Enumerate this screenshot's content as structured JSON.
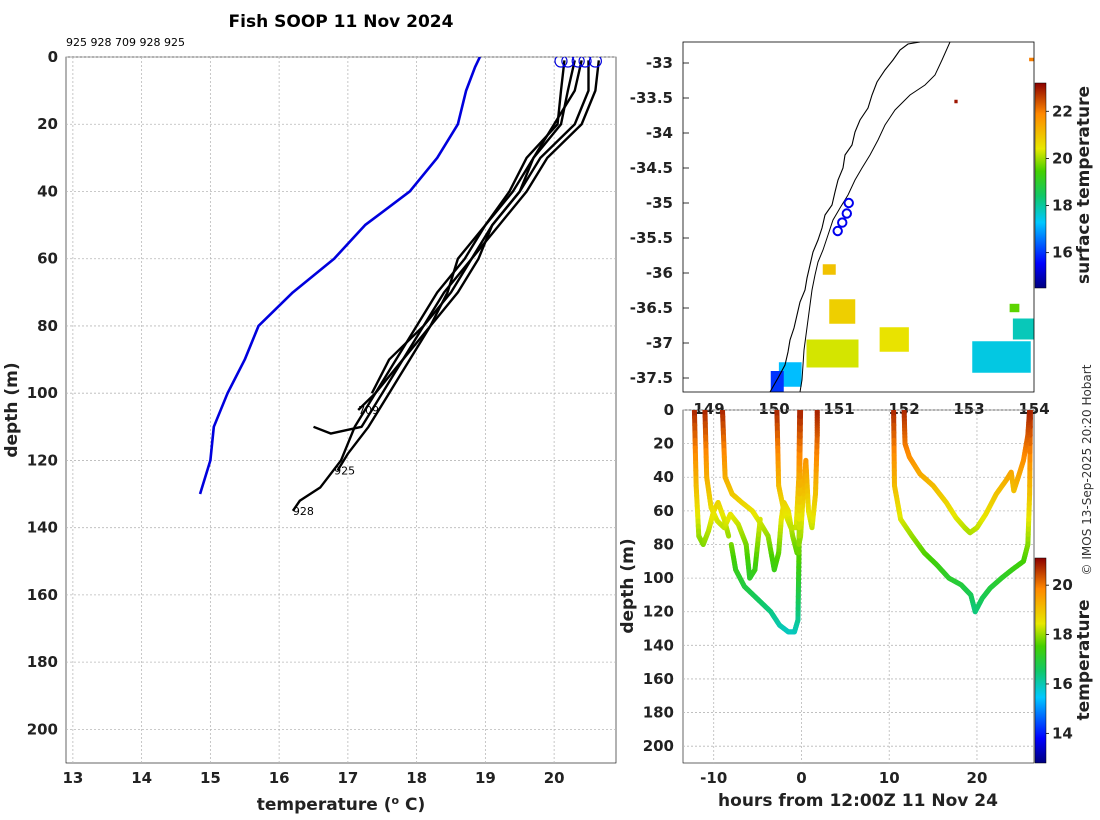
{
  "figure": {
    "credit": "© IMOS 13-Sep-2025 20:20 Hobart"
  },
  "chart_data": [
    {
      "type": "line",
      "panel": "profiles",
      "title": "Fish SOOP 11 Nov 2024",
      "header_ids": "925 928 709 928 925",
      "xlabel_main": "temperature (",
      "xlabel_sup": "o",
      "xlabel_tail": " C)",
      "ylabel": "depth (m)",
      "xlim": [
        12.9,
        20.9
      ],
      "ylim": [
        210,
        0
      ],
      "xticks": [
        13,
        14,
        15,
        16,
        17,
        18,
        19,
        20
      ],
      "yticks": [
        0,
        20,
        40,
        60,
        80,
        100,
        120,
        140,
        160,
        180,
        200
      ],
      "grid": true,
      "series": [
        {
          "name": "climatology",
          "color": "#0000dd",
          "points": [
            [
              18.92,
              0
            ],
            [
              18.85,
              3
            ],
            [
              18.72,
              10
            ],
            [
              18.6,
              20
            ],
            [
              18.3,
              30
            ],
            [
              17.9,
              40
            ],
            [
              17.25,
              50
            ],
            [
              16.8,
              60
            ],
            [
              16.2,
              70
            ],
            [
              15.7,
              80
            ],
            [
              15.5,
              90
            ],
            [
              15.25,
              100
            ],
            [
              15.05,
              110
            ],
            [
              15.0,
              120
            ],
            [
              14.85,
              130
            ]
          ]
        }
      ],
      "casts": [
        {
          "id": "925",
          "color": "#000000",
          "label_at": [
            16.8,
            123
          ],
          "points": [
            [
              20.15,
              1
            ],
            [
              20.1,
              10
            ],
            [
              20.05,
              20
            ],
            [
              19.6,
              30
            ],
            [
              19.35,
              40
            ],
            [
              19.0,
              50
            ],
            [
              18.6,
              60
            ],
            [
              18.45,
              70
            ],
            [
              18.2,
              80
            ],
            [
              17.9,
              90
            ],
            [
              17.6,
              100
            ],
            [
              17.3,
              110
            ],
            [
              17.0,
              118
            ],
            [
              16.85,
              123
            ]
          ]
        },
        {
          "id": "928",
          "color": "#000000",
          "label_at": [
            16.2,
            135
          ],
          "points": [
            [
              20.4,
              1
            ],
            [
              20.3,
              10
            ],
            [
              20.0,
              20
            ],
            [
              19.7,
              30
            ],
            [
              19.4,
              40
            ],
            [
              19.0,
              50
            ],
            [
              18.7,
              60
            ],
            [
              18.3,
              70
            ],
            [
              18.0,
              80
            ],
            [
              17.7,
              90
            ],
            [
              17.4,
              100
            ],
            [
              17.1,
              110
            ],
            [
              16.9,
              120
            ],
            [
              16.6,
              128
            ],
            [
              16.3,
              132
            ],
            [
              16.2,
              135
            ]
          ]
        },
        {
          "id": "709",
          "color": "#000000",
          "label_at": [
            17.15,
            105
          ],
          "points": [
            [
              20.5,
              1
            ],
            [
              20.5,
              10
            ],
            [
              20.3,
              20
            ],
            [
              19.8,
              30
            ],
            [
              19.5,
              40
            ],
            [
              19.1,
              50
            ],
            [
              18.9,
              60
            ],
            [
              18.6,
              70
            ],
            [
              18.2,
              80
            ],
            [
              17.8,
              90
            ],
            [
              17.4,
              100
            ],
            [
              17.15,
              105
            ]
          ]
        },
        {
          "id": "928",
          "color": "#000000",
          "label_at": null,
          "points": [
            [
              20.65,
              1
            ],
            [
              20.6,
              10
            ],
            [
              20.4,
              20
            ],
            [
              19.9,
              30
            ],
            [
              19.6,
              40
            ],
            [
              19.2,
              50
            ],
            [
              18.8,
              60
            ],
            [
              18.4,
              70
            ],
            [
              18.1,
              80
            ],
            [
              17.8,
              90
            ],
            [
              17.5,
              100
            ],
            [
              17.2,
              110
            ],
            [
              16.75,
              112
            ],
            [
              16.5,
              110
            ]
          ]
        },
        {
          "id": "925",
          "color": "#000000",
          "label_at": null,
          "points": [
            [
              20.3,
              1
            ],
            [
              20.2,
              10
            ],
            [
              20.1,
              20
            ],
            [
              19.7,
              30
            ],
            [
              19.5,
              40
            ],
            [
              19.1,
              50
            ],
            [
              18.8,
              60
            ],
            [
              18.5,
              70
            ],
            [
              18.1,
              80
            ],
            [
              17.6,
              90
            ],
            [
              17.35,
              100
            ]
          ]
        }
      ],
      "surface_markers": [
        20.1,
        20.2,
        20.35,
        20.45,
        20.6
      ]
    },
    {
      "type": "heatmap",
      "panel": "map",
      "ylim": [
        -37.7,
        -32.7
      ],
      "yticks": [
        "-33",
        "-33.5",
        "-34",
        "-34.5",
        "-35",
        "-35.5",
        "-36",
        "-36.5",
        "-37",
        "-37.5"
      ],
      "ytick_values": [
        -33,
        -33.5,
        -34,
        -34.5,
        -35,
        -35.5,
        -36,
        -36.5,
        -37,
        -37.5
      ],
      "xticks": [
        "149",
        "150",
        "151",
        "152",
        "153",
        "154"
      ],
      "xtick_values": [
        149,
        150,
        151,
        152,
        153,
        154
      ],
      "xlim": [
        148.6,
        154.0
      ],
      "colorbar": {
        "label": "surface temperature",
        "ticks": [
          "16",
          "18",
          "20",
          "22"
        ],
        "tick_values": [
          16,
          18,
          20,
          22
        ],
        "range": [
          14.5,
          23.2
        ]
      },
      "sst_patches": [
        {
          "lon": 150.9,
          "lat": -37.15,
          "w": 0.8,
          "h": 0.4,
          "temp": 20.3
        },
        {
          "lon": 151.05,
          "lat": -36.55,
          "w": 0.4,
          "h": 0.35,
          "temp": 20.8
        },
        {
          "lon": 150.85,
          "lat": -35.95,
          "w": 0.2,
          "h": 0.15,
          "temp": 21.0
        },
        {
          "lon": 150.25,
          "lat": -37.45,
          "w": 0.35,
          "h": 0.35,
          "temp": 17.2
        },
        {
          "lon": 150.05,
          "lat": -37.55,
          "w": 0.2,
          "h": 0.3,
          "temp": 16.0
        },
        {
          "lon": 151.85,
          "lat": -36.95,
          "w": 0.45,
          "h": 0.35,
          "temp": 20.5
        },
        {
          "lon": 153.5,
          "lat": -37.2,
          "w": 0.9,
          "h": 0.45,
          "temp": 17.5
        },
        {
          "lon": 153.85,
          "lat": -36.8,
          "w": 0.35,
          "h": 0.3,
          "temp": 17.8
        },
        {
          "lon": 153.7,
          "lat": -36.5,
          "w": 0.15,
          "h": 0.12,
          "temp": 19.6
        },
        {
          "lon": 154.0,
          "lat": -32.95,
          "w": 0.15,
          "h": 0.05,
          "temp": 22.0
        },
        {
          "lon": 152.8,
          "lat": -33.55,
          "w": 0.05,
          "h": 0.05,
          "temp": 23.0
        }
      ],
      "casts": [
        [
          151.15,
          -35.0
        ],
        [
          151.12,
          -35.15
        ],
        [
          151.05,
          -35.28
        ],
        [
          150.98,
          -35.4
        ]
      ]
    },
    {
      "type": "scatter",
      "panel": "time-depth",
      "xlabel": "hours from 12:00Z 11 Nov 24",
      "ylabel": "depth (m)",
      "xlim": [
        -13.5,
        26.5
      ],
      "ylim": [
        210,
        0
      ],
      "xticks": [
        -10,
        0,
        10,
        20
      ],
      "yticks": [
        0,
        20,
        40,
        60,
        80,
        100,
        120,
        140,
        160,
        180,
        200
      ],
      "colorbar": {
        "label": "temperature",
        "ticks": [
          "14",
          "16",
          "18",
          "20"
        ],
        "tick_values": [
          14,
          16,
          18,
          20
        ],
        "range": [
          12.8,
          21.1
        ]
      },
      "tracks": [
        {
          "points": [
            [
              -12.2,
              0
            ],
            [
              -12.0,
              45
            ],
            [
              -11.7,
              75
            ],
            [
              -11.2,
              80
            ],
            [
              -10.6,
              72
            ],
            [
              -10.0,
              60
            ],
            [
              -9.5,
              55
            ],
            [
              -8.8,
              65
            ],
            [
              -8.3,
              75
            ]
          ]
        },
        {
          "points": [
            [
              -11.0,
              0
            ],
            [
              -10.8,
              40
            ],
            [
              -10.3,
              58
            ],
            [
              -9.6,
              66
            ],
            [
              -8.8,
              70
            ],
            [
              -8.1,
              62
            ],
            [
              -7.2,
              68
            ],
            [
              -6.3,
              80
            ],
            [
              -5.9,
              100
            ],
            [
              -5.3,
              95
            ],
            [
              -4.7,
              65
            ]
          ]
        },
        {
          "points": [
            [
              -9.0,
              0
            ],
            [
              -8.7,
              40
            ],
            [
              -7.9,
              50
            ],
            [
              -6.8,
              55
            ],
            [
              -5.6,
              60
            ],
            [
              -4.6,
              68
            ],
            [
              -3.8,
              75
            ],
            [
              -3.1,
              95
            ],
            [
              -2.6,
              85
            ],
            [
              -2.3,
              65
            ],
            [
              -2.0,
              55
            ],
            [
              -1.5,
              60
            ],
            [
              -1.0,
              75
            ],
            [
              -0.5,
              85
            ],
            [
              -0.1,
              75
            ],
            [
              0.2,
              50
            ],
            [
              0.5,
              30
            ],
            [
              0.8,
              60
            ],
            [
              1.2,
              70
            ],
            [
              1.6,
              50
            ],
            [
              1.8,
              15
            ],
            [
              1.8,
              0
            ]
          ]
        },
        {
          "points": [
            [
              -2.8,
              0
            ],
            [
              -2.6,
              45
            ],
            [
              -2.0,
              60
            ],
            [
              -1.2,
              70
            ],
            [
              -0.6,
              70
            ],
            [
              -0.3,
              40
            ],
            [
              -0.2,
              0
            ]
          ]
        },
        {
          "points": [
            [
              -8.0,
              80
            ],
            [
              -7.5,
              95
            ],
            [
              -6.5,
              105
            ],
            [
              -5.5,
              110
            ],
            [
              -4.5,
              115
            ],
            [
              -3.5,
              120
            ],
            [
              -2.5,
              128
            ],
            [
              -1.5,
              132
            ],
            [
              -0.8,
              132
            ],
            [
              -0.4,
              125
            ],
            [
              -0.3,
              90
            ],
            [
              -0.2,
              40
            ],
            [
              -0.1,
              0
            ]
          ]
        },
        {
          "points": [
            [
              10.5,
              0
            ],
            [
              10.6,
              45
            ],
            [
              11.3,
              65
            ],
            [
              12.6,
              75
            ],
            [
              14.0,
              85
            ],
            [
              15.4,
              92
            ],
            [
              16.8,
              100
            ],
            [
              18.2,
              104
            ],
            [
              19.3,
              110
            ],
            [
              19.8,
              120
            ],
            [
              20.6,
              112
            ],
            [
              21.5,
              106
            ],
            [
              22.8,
              100
            ],
            [
              24.0,
              95
            ],
            [
              25.3,
              90
            ],
            [
              25.8,
              80
            ],
            [
              26.0,
              50
            ],
            [
              26.1,
              0
            ]
          ]
        },
        {
          "points": [
            [
              11.7,
              0
            ],
            [
              11.8,
              20
            ],
            [
              12.3,
              28
            ],
            [
              13.5,
              38
            ],
            [
              15.0,
              45
            ],
            [
              16.5,
              55
            ],
            [
              17.6,
              64
            ],
            [
              18.6,
              70
            ],
            [
              19.2,
              73
            ],
            [
              20.0,
              70
            ],
            [
              21.0,
              62
            ],
            [
              22.2,
              50
            ],
            [
              23.3,
              42
            ],
            [
              23.9,
              37
            ],
            [
              24.2,
              48
            ],
            [
              24.7,
              40
            ],
            [
              25.3,
              30
            ],
            [
              25.8,
              15
            ],
            [
              26.0,
              0
            ]
          ]
        }
      ]
    }
  ]
}
